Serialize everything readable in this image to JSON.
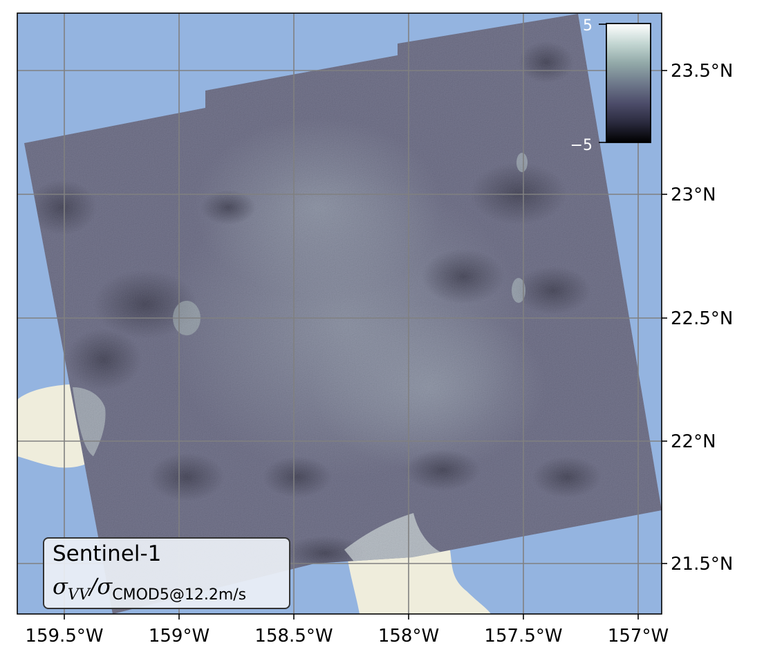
{
  "map": {
    "legend": {
      "title": "Sentinel-1",
      "ratio_symbol": "σ",
      "numerator_sub": "VV",
      "slash": "/",
      "denominator_sub": "CMOD5@12.2m/s"
    },
    "colorbar": {
      "max_label": "5",
      "min_label": "−5",
      "colormap": [
        "#000000",
        "#2b2b3f",
        "#4d4d6a",
        "#6f7a8c",
        "#93aaa9",
        "#c3d6d2",
        "#ffffff"
      ]
    },
    "x_ticks": [
      "159.5°W",
      "159°W",
      "158.5°W",
      "158°W",
      "157.5°W",
      "157°W"
    ],
    "y_ticks": [
      "23.5°N",
      "23°N",
      "22.5°N",
      "22°N",
      "21.5°N"
    ],
    "colors": {
      "ocean": "#94b4e0",
      "land": "#efeddc",
      "gridline": "#808080",
      "scene_base": "#5e5f7a"
    }
  }
}
